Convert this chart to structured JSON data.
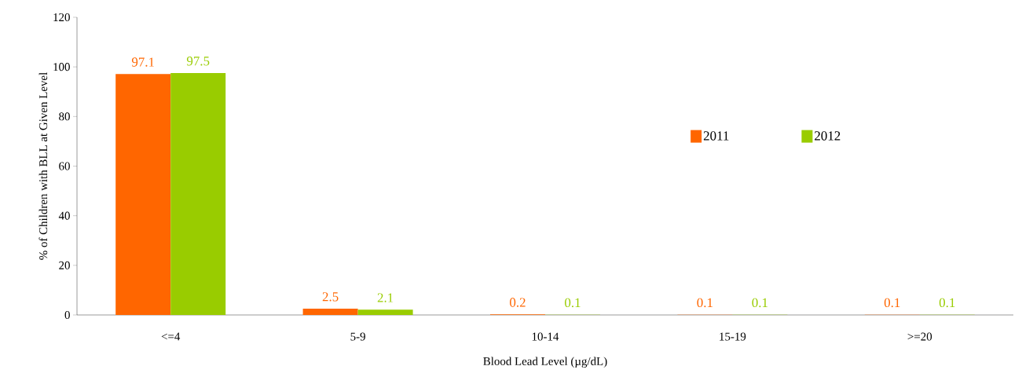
{
  "chart_data": {
    "type": "bar",
    "xlabel": "Blood Lead Level (µg/dL)",
    "ylabel": "% of Children with BLL at Given Level",
    "categories": [
      "<=4",
      "5-9",
      "10-14",
      "15-19",
      ">=20"
    ],
    "series": [
      {
        "name": "2011",
        "color": "#ff6600",
        "values": [
          97.1,
          2.5,
          0.2,
          0.1,
          0.1
        ]
      },
      {
        "name": "2012",
        "color": "#99cc00",
        "values": [
          97.5,
          2.1,
          0.1,
          0.1,
          0.1
        ]
      }
    ],
    "ylim": [
      0,
      120
    ],
    "yticks": [
      0,
      20,
      40,
      60,
      80,
      100,
      120
    ],
    "data_labels": true,
    "legend": "right",
    "grid": false
  }
}
